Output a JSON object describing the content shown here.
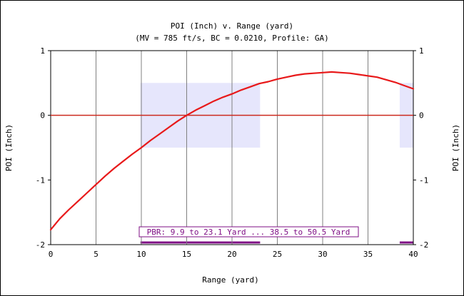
{
  "chart_data": {
    "type": "line",
    "title": "POI (Inch) v. Range (yard)",
    "subtitle": "(MV = 785 ft/s, BC = 0.0210, Profile: GA)",
    "xlabel": "Range (yard)",
    "ylabel_left": "POI (Inch)",
    "ylabel_right": "POI (Inch)",
    "xlim": [
      0,
      40
    ],
    "ylim": [
      -2,
      1
    ],
    "x_ticks": [
      "0",
      "5",
      "10",
      "15",
      "20",
      "25",
      "30",
      "35",
      "40"
    ],
    "y_ticks": [
      "1",
      "0",
      "-1",
      "-2"
    ],
    "grid": true,
    "series": [
      {
        "color": "#e8191a",
        "x": [
          0,
          1,
          2,
          3,
          4,
          5,
          6,
          7,
          8,
          9,
          10,
          11,
          12,
          13,
          14,
          15,
          16,
          17,
          18,
          19,
          20,
          21,
          22,
          23,
          24,
          25,
          26,
          27,
          28,
          29,
          30,
          31,
          32,
          33,
          34,
          35,
          36,
          37,
          38,
          39,
          40
        ],
        "y": [
          -1.77,
          -1.6,
          -1.46,
          -1.33,
          -1.2,
          -1.07,
          -0.94,
          -0.82,
          -0.71,
          -0.6,
          -0.5,
          -0.39,
          -0.29,
          -0.19,
          -0.09,
          0.0,
          0.08,
          0.15,
          0.22,
          0.28,
          0.33,
          0.39,
          0.44,
          0.49,
          0.52,
          0.56,
          0.59,
          0.62,
          0.64,
          0.65,
          0.66,
          0.67,
          0.66,
          0.65,
          0.63,
          0.61,
          0.59,
          0.55,
          0.51,
          0.46,
          0.41
        ]
      }
    ],
    "zero_line": {
      "y": 0,
      "color": "#cc2a1f"
    },
    "pbr": {
      "label": "PBR: 9.9 to 23.1 Yard ... 38.5 to 50.5 Yard",
      "band_ymin": -0.5,
      "band_ymax": 0.5,
      "ranges": [
        [
          9.9,
          23.1
        ],
        [
          38.5,
          50.5
        ]
      ],
      "band_color": "#e6e6fc",
      "label_color": "#7f0f85"
    }
  }
}
